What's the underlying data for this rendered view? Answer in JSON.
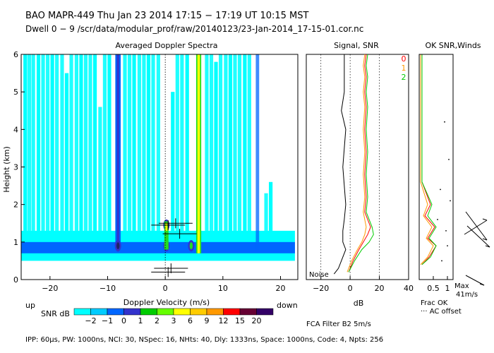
{
  "header": {
    "line1": "BAO  MAPR-449  Thu Jan 23 2014 17:15 − 17:19 UT 10:15 MST",
    "line2": "Dwell  0 −  9   /scr/data/modular_prof/raw/20140123/23-Jan-2014_17-15-01.cor.nc"
  },
  "footer": "IPP:  60µs,  PW: 1000ns,  NCI:  30,  NSpec: 16, NHts: 40,  Dly: 1333ns,  Space: 1000ns,  Code: 4,  Npts: 256",
  "colors": {
    "contour_light": "#00ffff",
    "contour_mid": "#0066ff",
    "contour_dark": "#3333cc",
    "band_green": "#22dd22",
    "band_yellow": "#ffff00",
    "snr_red": "#ff0000",
    "snr_orange": "#ff9900",
    "snr_green": "#00cc00"
  },
  "chart_data": [
    {
      "type": "heatmap",
      "title": "Averaged Doppler Spectra",
      "xlabel": "Doppler Velocity (m/s)",
      "ylabel": "Height (km)",
      "xlim": [
        -25,
        23
      ],
      "ylim": [
        0,
        6
      ],
      "xticks": [
        -20,
        -10,
        0,
        10,
        20
      ],
      "xtick_labels": [
        "−20",
        "−10",
        "0",
        "10",
        "20"
      ],
      "yticks": [
        0,
        1,
        2,
        3,
        4,
        5,
        6
      ],
      "ytick_labels": [
        "0",
        "1",
        "2",
        "3",
        "4",
        "5",
        "6"
      ],
      "left_label": "up",
      "right_label": "down",
      "colorbar": {
        "label": "SNR dB",
        "levels": [
          "−2",
          "−1",
          "0",
          "1",
          "2",
          "3",
          "6",
          "9",
          "12",
          "15",
          "20"
        ],
        "colors": [
          "#00ffff",
          "#00ccff",
          "#0066ff",
          "#3333cc",
          "#00cc00",
          "#66ff00",
          "#ffff00",
          "#ffcc00",
          "#ff9900",
          "#ff0000",
          "#660033",
          "#330066"
        ]
      },
      "vertical_bands": [
        {
          "velocity": -8.2,
          "level": "-1"
        },
        {
          "velocity": 5.8,
          "level": "2-3"
        },
        {
          "velocity": 16.0,
          "level": "-2"
        }
      ],
      "low_level_layer": {
        "height_range": [
          0.7,
          1.0
        ],
        "level": "-1"
      },
      "wind_peaks": [
        {
          "velocity": -8.2,
          "height": 0.9
        },
        {
          "velocity": 0.2,
          "height": 0.9
        },
        {
          "velocity": 0.2,
          "height": 1.45
        },
        {
          "velocity": 4.5,
          "height": 0.9
        }
      ],
      "error_bars": [
        {
          "velocity": 0.5,
          "height": 1.45
        },
        {
          "velocity": 1.8,
          "height": 1.5
        },
        {
          "velocity": 2.5,
          "height": 1.22
        },
        {
          "velocity": 1.0,
          "height": 0.3
        },
        {
          "velocity": 0.5,
          "height": 0.2
        }
      ]
    },
    {
      "type": "line",
      "title": "Signal, SNR",
      "xlabel": "dB",
      "xlim": [
        -30,
        40
      ],
      "ylim": [
        0,
        6
      ],
      "xticks": [
        -20,
        0,
        20,
        40
      ],
      "xtick_labels": [
        "−20",
        "0",
        "20",
        "40"
      ],
      "noise_label": "Noise",
      "series": [
        {
          "name": "noise",
          "color": "#000000",
          "x": [
            -11,
            -8,
            -6,
            -3,
            -5,
            -5,
            -4,
            -3,
            -4,
            -5,
            -4,
            -3,
            -6,
            -4,
            -4,
            -4
          ],
          "y": [
            0.15,
            0.3,
            0.5,
            0.8,
            1.0,
            1.3,
            1.6,
            2.0,
            2.5,
            3.0,
            3.5,
            4.0,
            4.5,
            5.0,
            5.5,
            6.0
          ]
        },
        {
          "name": "0",
          "color": "#ff0000",
          "x": [
            -1,
            2,
            6,
            9,
            12,
            14,
            10,
            11,
            10,
            11,
            10,
            11,
            10,
            11,
            10,
            11
          ],
          "y": [
            0.2,
            0.5,
            0.8,
            1.0,
            1.2,
            1.4,
            1.8,
            2.2,
            2.8,
            3.4,
            4.0,
            4.6,
            5.0,
            5.4,
            5.7,
            6.0
          ]
        },
        {
          "name": "1",
          "color": "#ff9900",
          "x": [
            -2,
            1,
            5,
            8,
            10,
            11,
            9,
            10,
            9,
            10,
            9,
            10,
            9,
            10,
            9,
            10
          ],
          "y": [
            0.2,
            0.5,
            0.8,
            1.0,
            1.2,
            1.4,
            1.8,
            2.2,
            2.8,
            3.4,
            4.0,
            4.6,
            5.0,
            5.4,
            5.7,
            6.0
          ]
        },
        {
          "name": "2",
          "color": "#00cc00",
          "x": [
            -1,
            3,
            8,
            13,
            16,
            15,
            11,
            12,
            11,
            12,
            11,
            12,
            11,
            12,
            11,
            12
          ],
          "y": [
            0.2,
            0.5,
            0.8,
            1.0,
            1.2,
            1.4,
            1.8,
            2.2,
            2.8,
            3.4,
            4.0,
            4.6,
            5.0,
            5.4,
            5.7,
            6.0
          ]
        }
      ]
    },
    {
      "type": "line",
      "title": "OK SNR,Winds",
      "xlim": [
        0,
        1.2
      ],
      "ylim": [
        0,
        6
      ],
      "xticks": [
        0.5,
        1
      ],
      "xtick_labels": [
        "0.5",
        "1"
      ],
      "frac_label": "Frac OK",
      "offset_label": "··· AC offset",
      "max_label": "Max",
      "max_value_label": "41m/s",
      "legend": [
        {
          "name": "0",
          "color": "#ff0000"
        },
        {
          "name": "1",
          "color": "#ff9900"
        },
        {
          "name": "2",
          "color": "#00cc00"
        }
      ],
      "series": [
        {
          "name": "0",
          "color": "#ff0000",
          "x": [
            0.1,
            0.35,
            0.6,
            0.3,
            0.55,
            0.2,
            0.4,
            0.1,
            0.1,
            0.1,
            0.1,
            0.1
          ],
          "y": [
            0.4,
            0.6,
            0.9,
            1.1,
            1.4,
            1.7,
            2.0,
            2.6,
            3.5,
            4.5,
            5.5,
            6.0
          ]
        },
        {
          "name": "1",
          "color": "#ff9900",
          "x": [
            0.05,
            0.3,
            0.5,
            0.25,
            0.45,
            0.15,
            0.3,
            0.05,
            0.05,
            0.05,
            0.05,
            0.05
          ],
          "y": [
            0.4,
            0.6,
            0.9,
            1.1,
            1.4,
            1.7,
            2.0,
            2.6,
            3.5,
            4.5,
            5.5,
            6.0
          ]
        },
        {
          "name": "2",
          "color": "#00cc00",
          "x": [
            0.1,
            0.4,
            0.6,
            0.35,
            0.6,
            0.3,
            0.45,
            0.1,
            0.1,
            0.1,
            0.1,
            0.1
          ],
          "y": [
            0.4,
            0.6,
            0.9,
            1.1,
            1.4,
            1.7,
            2.0,
            2.6,
            3.5,
            4.5,
            5.5,
            6.0
          ]
        }
      ]
    }
  ],
  "filter_label": "FCA Filter B2  5m/s"
}
